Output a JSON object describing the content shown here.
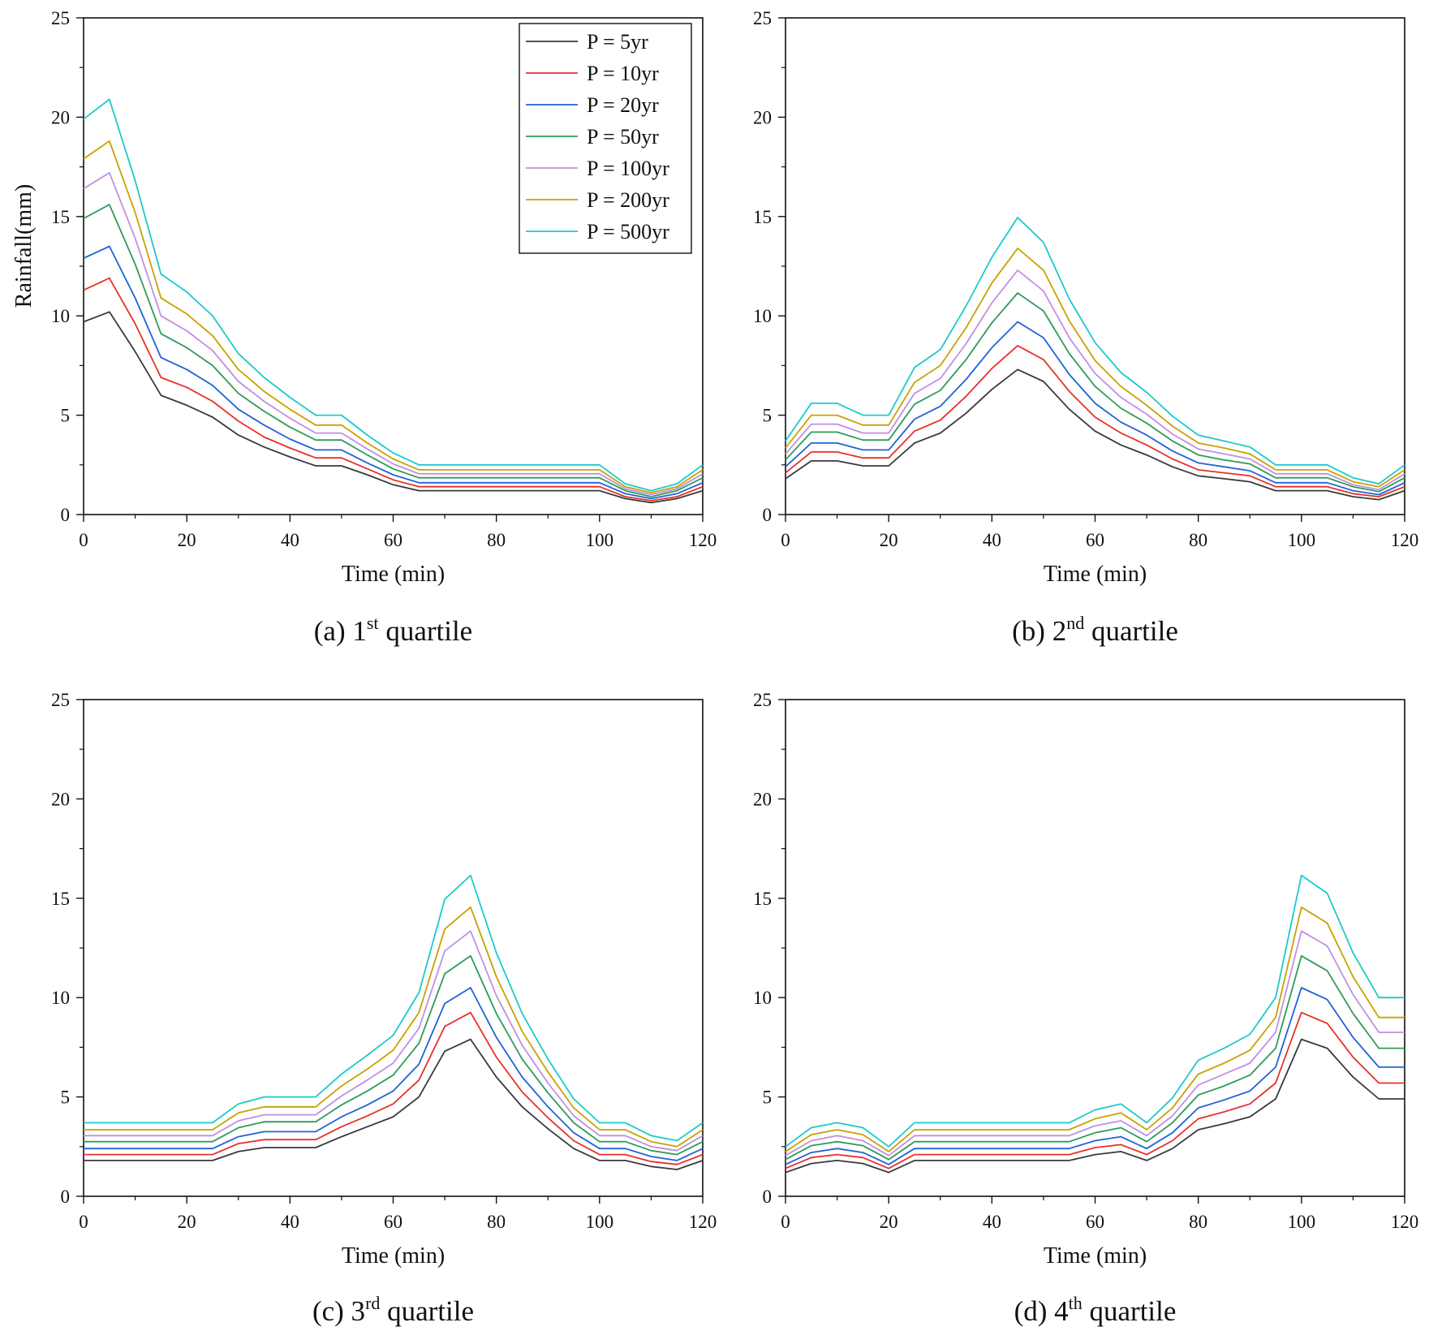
{
  "chart_data": [
    {
      "type": "line",
      "panel": "a",
      "caption": {
        "prefix": "(a) 1",
        "sup": "st",
        "suffix": " quartile"
      },
      "xlabel": "Time (min)",
      "ylabel": "Rainfall(mm)",
      "xlim": [
        0,
        120
      ],
      "ylim": [
        0,
        25
      ],
      "xticks": [
        0,
        20,
        40,
        60,
        80,
        100,
        120
      ],
      "yticks": [
        0,
        5,
        10,
        15,
        20,
        25
      ],
      "legend": true,
      "legend_position": "top-right",
      "x": [
        0,
        5,
        10,
        15,
        20,
        25,
        30,
        35,
        40,
        45,
        50,
        55,
        60,
        65,
        70,
        75,
        80,
        85,
        90,
        95,
        100,
        105,
        110,
        115,
        120
      ],
      "series": [
        {
          "name": "P = 5yr",
          "color": "#3a3a3a",
          "values": [
            9.7,
            10.2,
            8.2,
            6.0,
            5.5,
            4.9,
            4.0,
            3.4,
            2.9,
            2.45,
            2.45,
            2.0,
            1.5,
            1.2,
            1.2,
            1.2,
            1.2,
            1.2,
            1.2,
            1.2,
            1.2,
            0.8,
            0.6,
            0.8,
            1.2
          ]
        },
        {
          "name": "P = 10yr",
          "color": "#e8302a",
          "values": [
            11.3,
            11.9,
            9.6,
            6.9,
            6.4,
            5.7,
            4.7,
            3.9,
            3.35,
            2.85,
            2.85,
            2.3,
            1.75,
            1.4,
            1.4,
            1.4,
            1.4,
            1.4,
            1.4,
            1.4,
            1.4,
            0.9,
            0.7,
            0.9,
            1.4
          ]
        },
        {
          "name": "P = 20yr",
          "color": "#1f63d6",
          "values": [
            12.9,
            13.5,
            10.9,
            7.9,
            7.3,
            6.5,
            5.3,
            4.5,
            3.8,
            3.25,
            3.25,
            2.6,
            2.0,
            1.6,
            1.6,
            1.6,
            1.6,
            1.6,
            1.6,
            1.6,
            1.6,
            1.05,
            0.8,
            1.05,
            1.6
          ]
        },
        {
          "name": "P = 50yr",
          "color": "#2e9b5a",
          "values": [
            14.9,
            15.6,
            12.6,
            9.1,
            8.4,
            7.5,
            6.1,
            5.2,
            4.4,
            3.75,
            3.75,
            3.0,
            2.3,
            1.85,
            1.85,
            1.85,
            1.85,
            1.85,
            1.85,
            1.85,
            1.85,
            1.2,
            0.9,
            1.2,
            1.85
          ]
        },
        {
          "name": "P = 100yr",
          "color": "#c090e0",
          "values": [
            16.4,
            17.2,
            13.9,
            10.0,
            9.25,
            8.25,
            6.7,
            5.7,
            4.85,
            4.1,
            4.1,
            3.3,
            2.55,
            2.05,
            2.05,
            2.05,
            2.05,
            2.05,
            2.05,
            2.05,
            2.05,
            1.3,
            1.0,
            1.3,
            2.05
          ]
        },
        {
          "name": "P = 200yr",
          "color": "#c9a100",
          "values": [
            17.9,
            18.8,
            15.2,
            10.9,
            10.1,
            9.0,
            7.3,
            6.2,
            5.3,
            4.5,
            4.5,
            3.6,
            2.8,
            2.25,
            2.25,
            2.25,
            2.25,
            2.25,
            2.25,
            2.25,
            2.25,
            1.4,
            1.1,
            1.4,
            2.25
          ]
        },
        {
          "name": "P = 500yr",
          "color": "#1dc9c9",
          "values": [
            19.9,
            20.9,
            16.8,
            12.1,
            11.2,
            10.0,
            8.1,
            6.9,
            5.9,
            5.0,
            5.0,
            4.0,
            3.1,
            2.5,
            2.5,
            2.5,
            2.5,
            2.5,
            2.5,
            2.5,
            2.5,
            1.55,
            1.2,
            1.55,
            2.5
          ]
        }
      ]
    },
    {
      "type": "line",
      "panel": "b",
      "caption": {
        "prefix": "(b) 2",
        "sup": "nd",
        "suffix": " quartile"
      },
      "xlabel": "Time (min)",
      "ylabel": "",
      "xlim": [
        0,
        120
      ],
      "ylim": [
        0,
        25
      ],
      "xticks": [
        0,
        20,
        40,
        60,
        80,
        100,
        120
      ],
      "yticks": [
        0,
        5,
        10,
        15,
        20,
        25
      ],
      "legend": false,
      "x": [
        0,
        5,
        10,
        15,
        20,
        25,
        30,
        35,
        40,
        45,
        50,
        55,
        60,
        65,
        70,
        75,
        80,
        85,
        90,
        95,
        100,
        105,
        110,
        115,
        120
      ],
      "series": [
        {
          "name": "P = 5yr",
          "color": "#3a3a3a",
          "values": [
            1.8,
            2.7,
            2.7,
            2.45,
            2.45,
            3.6,
            4.1,
            5.1,
            6.3,
            7.3,
            6.7,
            5.3,
            4.2,
            3.5,
            3.0,
            2.4,
            1.95,
            1.8,
            1.65,
            1.2,
            1.2,
            1.2,
            0.9,
            0.75,
            1.2
          ]
        },
        {
          "name": "P = 10yr",
          "color": "#e8302a",
          "values": [
            2.1,
            3.15,
            3.15,
            2.85,
            2.85,
            4.2,
            4.75,
            5.95,
            7.35,
            8.5,
            7.8,
            6.2,
            4.9,
            4.1,
            3.5,
            2.8,
            2.25,
            2.1,
            1.95,
            1.4,
            1.4,
            1.4,
            1.05,
            0.9,
            1.4
          ]
        },
        {
          "name": "P = 20yr",
          "color": "#1f63d6",
          "values": [
            2.4,
            3.6,
            3.6,
            3.25,
            3.25,
            4.8,
            5.45,
            6.8,
            8.4,
            9.7,
            8.9,
            7.05,
            5.6,
            4.65,
            4.0,
            3.2,
            2.6,
            2.4,
            2.2,
            1.6,
            1.6,
            1.6,
            1.2,
            1.0,
            1.6
          ]
        },
        {
          "name": "P = 50yr",
          "color": "#2e9b5a",
          "values": [
            2.75,
            4.15,
            4.15,
            3.75,
            3.75,
            5.55,
            6.25,
            7.8,
            9.65,
            11.15,
            10.25,
            8.1,
            6.45,
            5.35,
            4.6,
            3.7,
            3.0,
            2.75,
            2.55,
            1.85,
            1.85,
            1.85,
            1.4,
            1.15,
            1.85
          ]
        },
        {
          "name": "P = 100yr",
          "color": "#c090e0",
          "values": [
            3.05,
            4.55,
            4.55,
            4.1,
            4.1,
            6.1,
            6.85,
            8.6,
            10.65,
            12.3,
            11.25,
            8.9,
            7.1,
            5.9,
            5.05,
            4.05,
            3.3,
            3.05,
            2.8,
            2.05,
            2.05,
            2.05,
            1.5,
            1.25,
            2.05
          ]
        },
        {
          "name": "P = 200yr",
          "color": "#c9a100",
          "values": [
            3.35,
            5.0,
            5.0,
            4.5,
            4.5,
            6.65,
            7.5,
            9.4,
            11.65,
            13.4,
            12.3,
            9.75,
            7.75,
            6.45,
            5.5,
            4.45,
            3.6,
            3.35,
            3.05,
            2.25,
            2.25,
            2.25,
            1.65,
            1.4,
            2.25
          ]
        },
        {
          "name": "P = 500yr",
          "color": "#1dc9c9",
          "values": [
            3.7,
            5.6,
            5.6,
            5.0,
            5.0,
            7.4,
            8.3,
            10.5,
            12.95,
            14.95,
            13.7,
            10.85,
            8.65,
            7.15,
            6.15,
            4.95,
            4.0,
            3.7,
            3.4,
            2.5,
            2.5,
            2.5,
            1.85,
            1.55,
            2.5
          ]
        }
      ]
    },
    {
      "type": "line",
      "panel": "c",
      "caption": {
        "prefix": "(c) 3",
        "sup": "rd",
        "suffix": " quartile"
      },
      "xlabel": "Time (min)",
      "ylabel": "",
      "xlim": [
        0,
        120
      ],
      "ylim": [
        0,
        25
      ],
      "xticks": [
        0,
        20,
        40,
        60,
        80,
        100,
        120
      ],
      "yticks": [
        0,
        5,
        10,
        15,
        20,
        25
      ],
      "legend": false,
      "x": [
        0,
        5,
        10,
        15,
        20,
        25,
        30,
        35,
        40,
        45,
        50,
        55,
        60,
        65,
        70,
        75,
        80,
        85,
        90,
        95,
        100,
        105,
        110,
        115,
        120
      ],
      "series": [
        {
          "name": "P = 5yr",
          "color": "#3a3a3a",
          "values": [
            1.8,
            1.8,
            1.8,
            1.8,
            1.8,
            1.8,
            2.25,
            2.45,
            2.45,
            2.45,
            3.0,
            3.5,
            4.0,
            5.0,
            7.3,
            7.9,
            6.0,
            4.5,
            3.4,
            2.4,
            1.8,
            1.8,
            1.5,
            1.35,
            1.8
          ]
        },
        {
          "name": "P = 10yr",
          "color": "#e8302a",
          "values": [
            2.1,
            2.1,
            2.1,
            2.1,
            2.1,
            2.1,
            2.65,
            2.85,
            2.85,
            2.85,
            3.5,
            4.05,
            4.65,
            5.85,
            8.55,
            9.25,
            7.0,
            5.25,
            3.95,
            2.8,
            2.1,
            2.1,
            1.75,
            1.6,
            2.1
          ]
        },
        {
          "name": "P = 20yr",
          "color": "#1f63d6",
          "values": [
            2.4,
            2.4,
            2.4,
            2.4,
            2.4,
            2.4,
            3.0,
            3.25,
            3.25,
            3.25,
            4.0,
            4.6,
            5.3,
            6.65,
            9.7,
            10.5,
            8.0,
            6.0,
            4.5,
            3.2,
            2.4,
            2.4,
            2.0,
            1.8,
            2.4
          ]
        },
        {
          "name": "P = 50yr",
          "color": "#2e9b5a",
          "values": [
            2.75,
            2.75,
            2.75,
            2.75,
            2.75,
            2.75,
            3.45,
            3.75,
            3.75,
            3.75,
            4.6,
            5.3,
            6.1,
            7.7,
            11.2,
            12.1,
            9.2,
            6.9,
            5.2,
            3.7,
            2.75,
            2.75,
            2.3,
            2.1,
            2.75
          ]
        },
        {
          "name": "P = 100yr",
          "color": "#c090e0",
          "values": [
            3.05,
            3.05,
            3.05,
            3.05,
            3.05,
            3.05,
            3.8,
            4.1,
            4.1,
            4.1,
            5.05,
            5.85,
            6.7,
            8.45,
            12.35,
            13.35,
            10.1,
            7.6,
            5.7,
            4.05,
            3.05,
            3.05,
            2.5,
            2.3,
            3.05
          ]
        },
        {
          "name": "P = 200yr",
          "color": "#c9a100",
          "values": [
            3.35,
            3.35,
            3.35,
            3.35,
            3.35,
            3.35,
            4.2,
            4.5,
            4.5,
            4.5,
            5.55,
            6.4,
            7.35,
            9.25,
            13.45,
            14.55,
            11.05,
            8.3,
            6.25,
            4.45,
            3.35,
            3.35,
            2.75,
            2.5,
            3.35
          ]
        },
        {
          "name": "P = 500yr",
          "color": "#1dc9c9",
          "values": [
            3.7,
            3.7,
            3.7,
            3.7,
            3.7,
            3.7,
            4.65,
            5.0,
            5.0,
            5.0,
            6.15,
            7.1,
            8.1,
            10.25,
            14.95,
            16.15,
            12.25,
            9.2,
            6.9,
            4.9,
            3.7,
            3.7,
            3.05,
            2.8,
            3.7
          ]
        }
      ]
    },
    {
      "type": "line",
      "panel": "d",
      "caption": {
        "prefix": "(d) 4",
        "sup": "th",
        "suffix": " quartile"
      },
      "xlabel": "Time (min)",
      "ylabel": "",
      "xlim": [
        0,
        120
      ],
      "ylim": [
        0,
        25
      ],
      "xticks": [
        0,
        20,
        40,
        60,
        80,
        100,
        120
      ],
      "yticks": [
        0,
        5,
        10,
        15,
        20,
        25
      ],
      "legend": false,
      "x": [
        0,
        5,
        10,
        15,
        20,
        25,
        30,
        35,
        40,
        45,
        50,
        55,
        60,
        65,
        70,
        75,
        80,
        85,
        90,
        95,
        100,
        105,
        110,
        115,
        120
      ],
      "series": [
        {
          "name": "P = 5yr",
          "color": "#3a3a3a",
          "values": [
            1.2,
            1.65,
            1.8,
            1.65,
            1.2,
            1.8,
            1.8,
            1.8,
            1.8,
            1.8,
            1.8,
            1.8,
            2.1,
            2.25,
            1.8,
            2.4,
            3.35,
            3.65,
            4.0,
            4.9,
            7.9,
            7.45,
            6.0,
            4.9,
            4.9
          ]
        },
        {
          "name": "P = 10yr",
          "color": "#e8302a",
          "values": [
            1.4,
            1.95,
            2.1,
            1.95,
            1.4,
            2.1,
            2.1,
            2.1,
            2.1,
            2.1,
            2.1,
            2.1,
            2.45,
            2.6,
            2.1,
            2.8,
            3.9,
            4.25,
            4.65,
            5.7,
            9.25,
            8.7,
            7.0,
            5.7,
            5.7
          ]
        },
        {
          "name": "P = 20yr",
          "color": "#1f63d6",
          "values": [
            1.6,
            2.2,
            2.4,
            2.2,
            1.6,
            2.4,
            2.4,
            2.4,
            2.4,
            2.4,
            2.4,
            2.4,
            2.8,
            3.0,
            2.4,
            3.2,
            4.45,
            4.85,
            5.3,
            6.5,
            10.5,
            9.9,
            8.0,
            6.5,
            6.5
          ]
        },
        {
          "name": "P = 50yr",
          "color": "#2e9b5a",
          "values": [
            1.85,
            2.55,
            2.75,
            2.55,
            1.85,
            2.75,
            2.75,
            2.75,
            2.75,
            2.75,
            2.75,
            2.75,
            3.2,
            3.45,
            2.75,
            3.7,
            5.1,
            5.55,
            6.1,
            7.45,
            12.1,
            11.35,
            9.2,
            7.45,
            7.45
          ]
        },
        {
          "name": "P = 100yr",
          "color": "#c090e0",
          "values": [
            2.05,
            2.8,
            3.05,
            2.8,
            2.05,
            3.05,
            3.05,
            3.05,
            3.05,
            3.05,
            3.05,
            3.05,
            3.55,
            3.8,
            3.05,
            4.05,
            5.6,
            6.15,
            6.7,
            8.25,
            13.35,
            12.6,
            10.15,
            8.25,
            8.25
          ]
        },
        {
          "name": "P = 200yr",
          "color": "#c9a100",
          "values": [
            2.25,
            3.1,
            3.35,
            3.1,
            2.25,
            3.35,
            3.35,
            3.35,
            3.35,
            3.35,
            3.35,
            3.35,
            3.9,
            4.2,
            3.35,
            4.45,
            6.15,
            6.7,
            7.35,
            9.0,
            14.55,
            13.75,
            11.05,
            9.0,
            9.0
          ]
        },
        {
          "name": "P = 500yr",
          "color": "#1dc9c9",
          "values": [
            2.5,
            3.45,
            3.7,
            3.45,
            2.5,
            3.7,
            3.7,
            3.7,
            3.7,
            3.7,
            3.7,
            3.7,
            4.35,
            4.65,
            3.7,
            4.95,
            6.85,
            7.45,
            8.15,
            10.0,
            16.15,
            15.25,
            12.25,
            10.0,
            10.0
          ]
        }
      ]
    }
  ]
}
